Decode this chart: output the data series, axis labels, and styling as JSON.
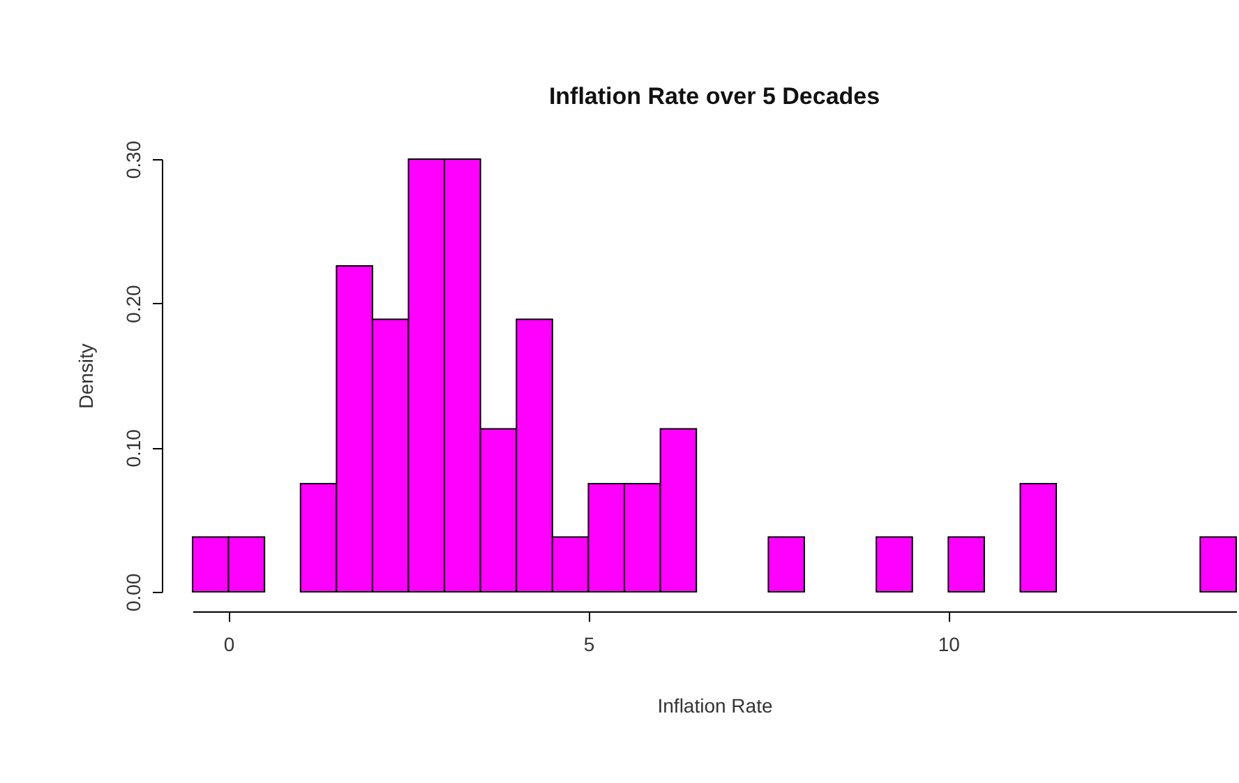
{
  "chart_data": {
    "type": "histogram",
    "title": "Inflation Rate over 5 Decades",
    "xlabel": "Inflation Rate",
    "ylabel": "Density",
    "bins": [
      -0.5,
      0,
      0.5,
      1,
      1.5,
      2,
      2.5,
      3,
      3.5,
      4,
      4.5,
      5,
      5.5,
      6,
      6.5,
      7,
      7.5,
      8,
      8.5,
      9,
      9.5,
      10,
      10.5,
      11,
      11.5,
      12,
      12.5,
      13,
      13.5,
      14
    ],
    "values": [
      0.038,
      0.038,
      0,
      0.075,
      0.226,
      0.189,
      0.3,
      0.3,
      0.113,
      0.189,
      0.038,
      0.075,
      0.075,
      0.113,
      0,
      0,
      0.038,
      0,
      0,
      0.038,
      0,
      0.038,
      0,
      0.075,
      0,
      0,
      0,
      0,
      0.038
    ],
    "color": "#ff00ff",
    "xlim": [
      -0.5,
      14
    ],
    "ylim": [
      0,
      0.3
    ],
    "xticks": [
      0,
      5,
      10
    ],
    "yticks": [
      {
        "value": 0,
        "label": "0.00"
      },
      {
        "value": 0.1,
        "label": "0.10"
      },
      {
        "value": 0.2,
        "label": "0.20"
      },
      {
        "value": 0.3,
        "label": "0.30"
      }
    ],
    "grid": false
  }
}
